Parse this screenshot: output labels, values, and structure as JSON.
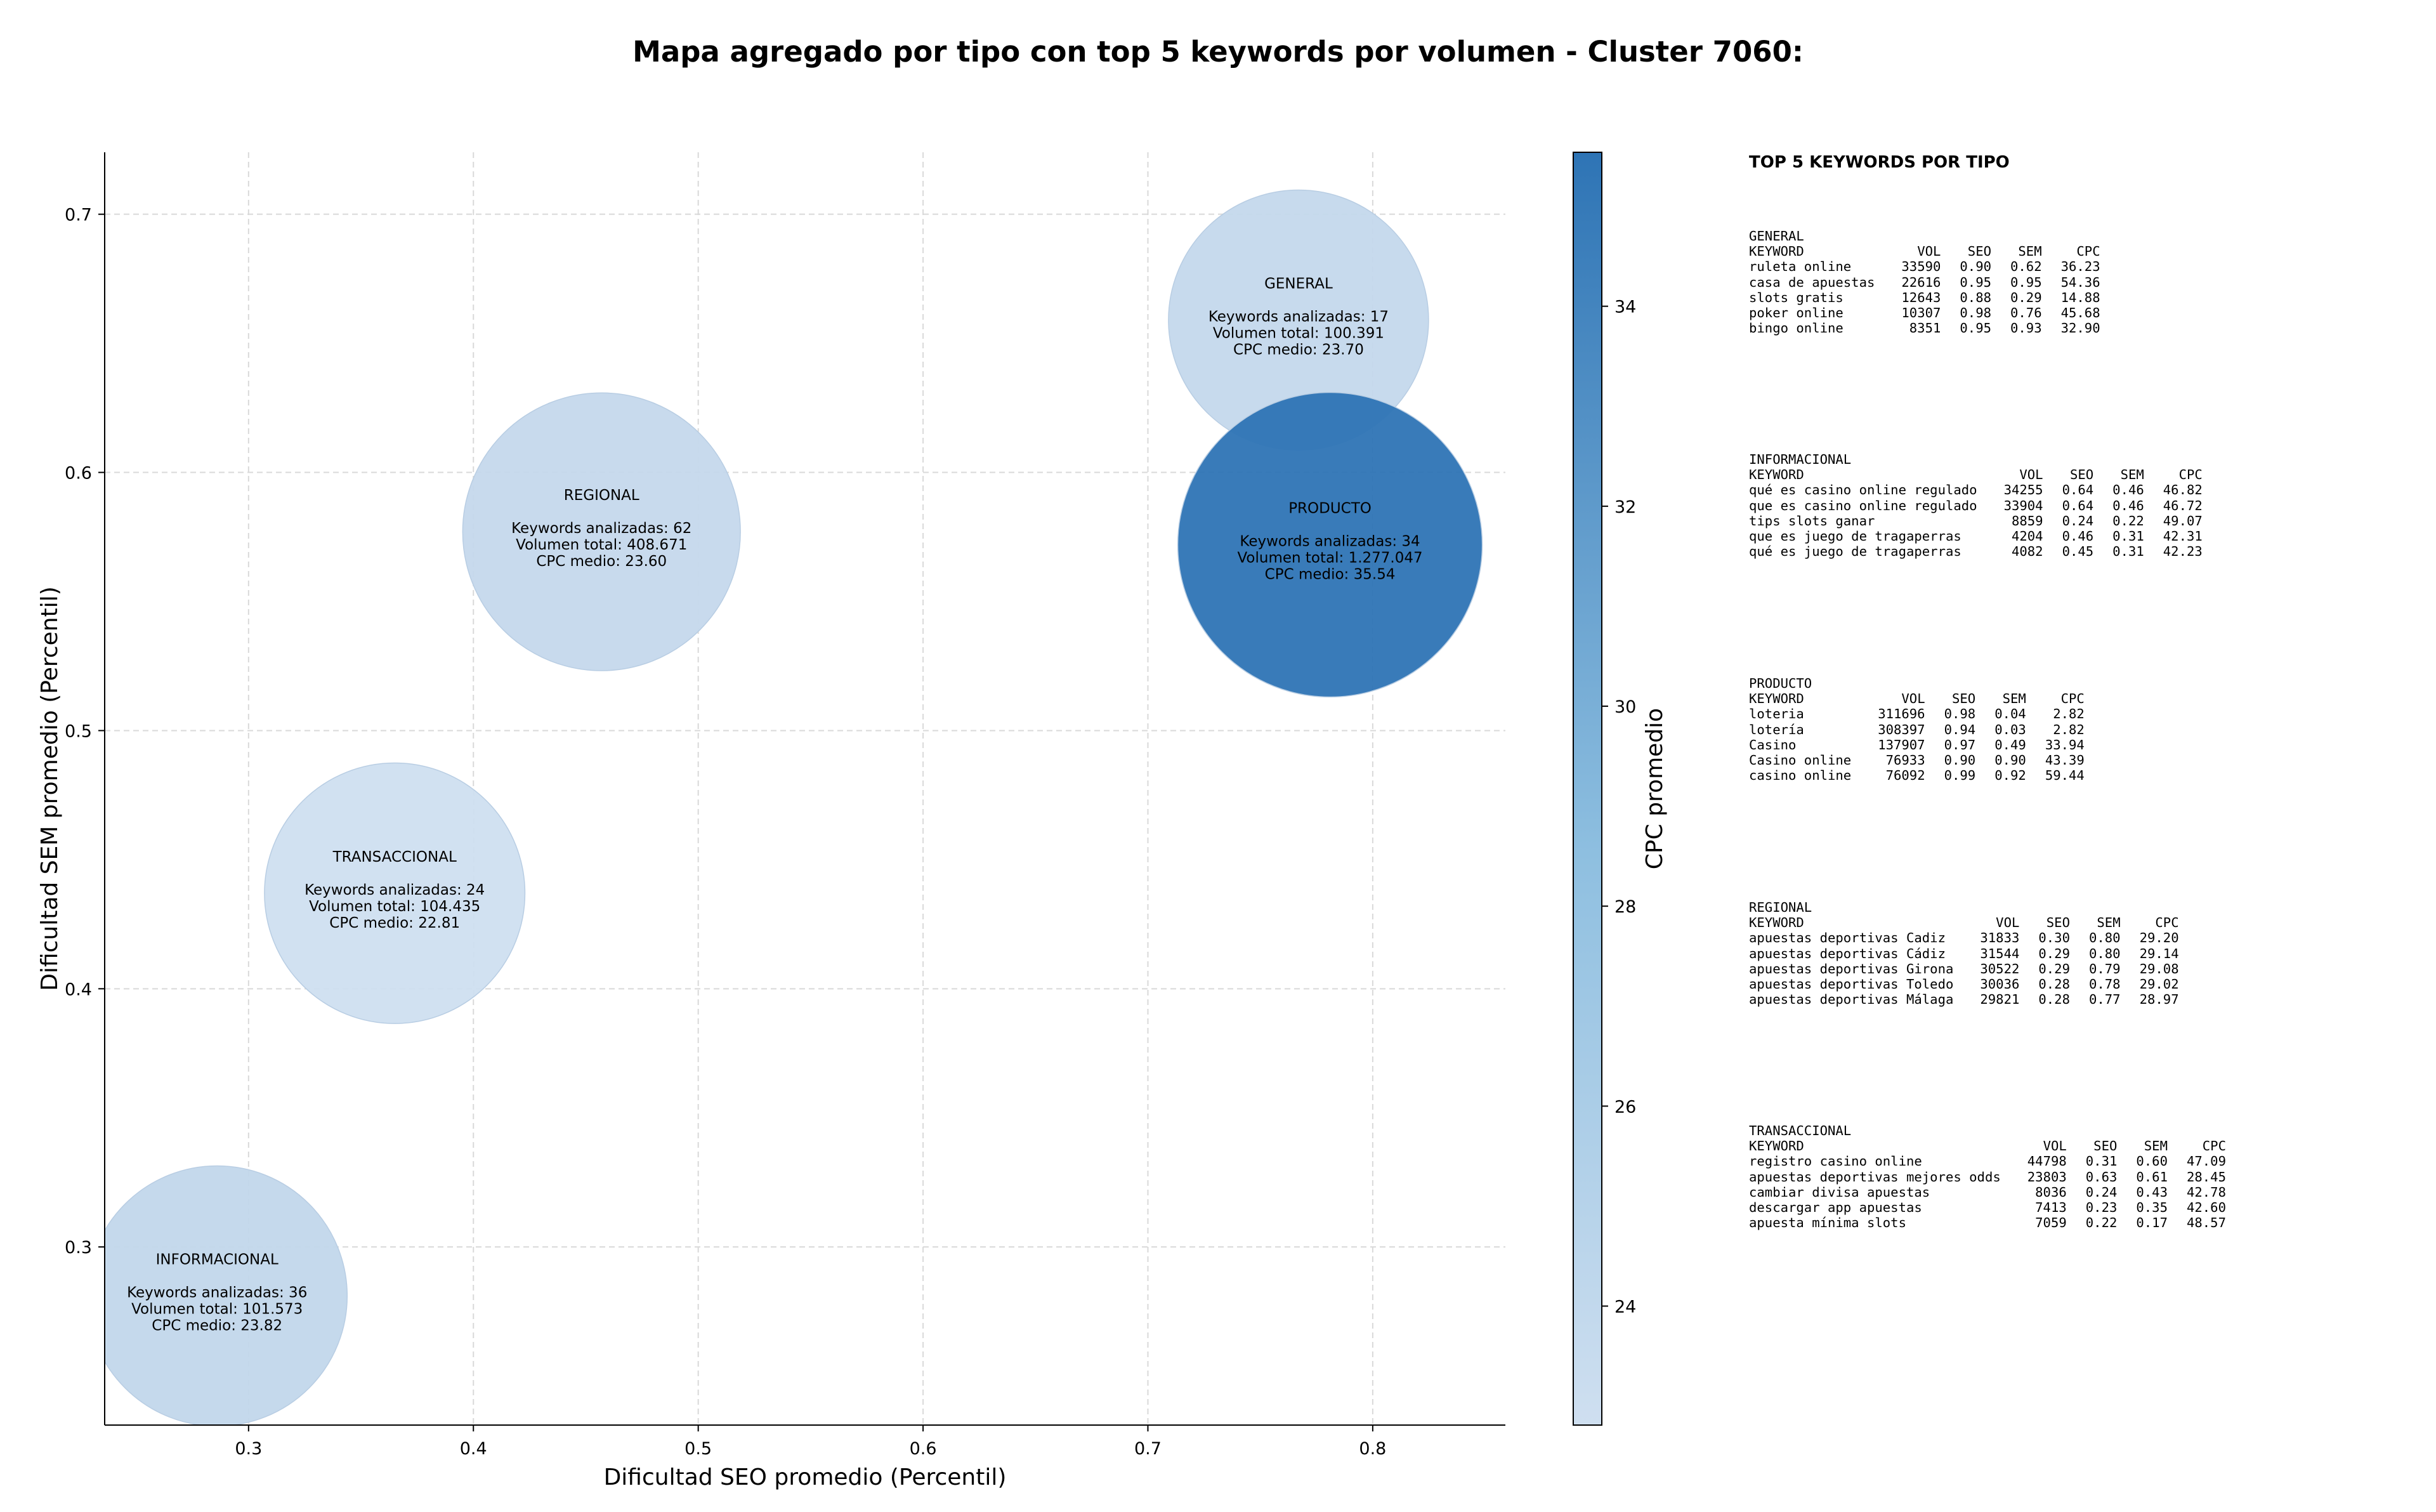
{
  "title": "Mapa agregado por tipo con top 5 keywords por volumen - Cluster 7060:",
  "chart_data": {
    "type": "scatter",
    "xlabel": "Dificultad SEO promedio (Percentil)",
    "ylabel": "Dificultad SEM promedio (Percentil)",
    "xlim": [
      0.236,
      0.859
    ],
    "ylim": [
      0.231,
      0.724
    ],
    "xticks": [
      "0.3",
      "0.4",
      "0.5",
      "0.6",
      "0.7",
      "0.8"
    ],
    "yticks": [
      "0.3",
      "0.4",
      "0.5",
      "0.6",
      "0.7"
    ],
    "grid": true,
    "bubble_size_by": "Volumen total",
    "colorbar": {
      "label": "CPC promedio",
      "range": [
        22.81,
        35.54
      ],
      "ticks": [
        "24",
        "26",
        "28",
        "30",
        "32",
        "34"
      ],
      "colors": [
        "#cfdff0",
        "#2e74b5"
      ]
    },
    "points": [
      {
        "name": "GENERAL",
        "x": 0.767,
        "y": 0.659,
        "line1": "Keywords analizadas: 17",
        "line2": "Volumen total: 100.391",
        "line3": "CPC medio: 23.70",
        "cpc": 23.7
      },
      {
        "name": "REGIONAL",
        "x": 0.457,
        "y": 0.577,
        "line1": "Keywords analizadas: 62",
        "line2": "Volumen total: 408.671",
        "line3": "CPC medio: 23.60",
        "cpc": 23.6
      },
      {
        "name": "TRANSACCIONAL",
        "x": 0.365,
        "y": 0.437,
        "line1": "Keywords analizadas: 24",
        "line2": "Volumen total: 104.435",
        "line3": "CPC medio: 22.81",
        "cpc": 22.81
      },
      {
        "name": "INFORMACIONAL",
        "x": 0.286,
        "y": 0.281,
        "line1": "Keywords analizadas: 36",
        "line2": "Volumen total: 101.573",
        "line3": "CPC medio: 23.82",
        "cpc": 23.82
      },
      {
        "name": "PRODUCTO",
        "x": 0.781,
        "y": 0.572,
        "line1": "Keywords analizadas: 34",
        "line2": "Volumen total: 1.277.047",
        "line3": "CPC medio: 35.54",
        "cpc": 35.54
      }
    ]
  },
  "side_panel": {
    "title": "TOP 5 KEYWORDS POR TIPO",
    "headers": [
      "KEYWORD",
      "VOL",
      "SEO",
      "SEM",
      "CPC"
    ],
    "groups": [
      {
        "name": "GENERAL",
        "rows": [
          [
            "ruleta online",
            "33590",
            "0.90",
            "0.62",
            "36.23"
          ],
          [
            "casa de apuestas",
            "22616",
            "0.95",
            "0.95",
            "54.36"
          ],
          [
            "slots gratis",
            "12643",
            "0.88",
            "0.29",
            "14.88"
          ],
          [
            "poker online",
            "10307",
            "0.98",
            "0.76",
            "45.68"
          ],
          [
            "bingo online",
            "8351",
            "0.95",
            "0.93",
            "32.90"
          ]
        ]
      },
      {
        "name": "INFORMACIONAL",
        "rows": [
          [
            "qué es casino online regulado",
            "34255",
            "0.64",
            "0.46",
            "46.82"
          ],
          [
            "que es casino online regulado",
            "33904",
            "0.64",
            "0.46",
            "46.72"
          ],
          [
            "tips slots ganar",
            "8859",
            "0.24",
            "0.22",
            "49.07"
          ],
          [
            "que es juego de tragaperras",
            "4204",
            "0.46",
            "0.31",
            "42.31"
          ],
          [
            "qué es juego de tragaperras",
            "4082",
            "0.45",
            "0.31",
            "42.23"
          ]
        ]
      },
      {
        "name": "PRODUCTO",
        "rows": [
          [
            "loteria",
            "311696",
            "0.98",
            "0.04",
            "2.82"
          ],
          [
            "lotería",
            "308397",
            "0.94",
            "0.03",
            "2.82"
          ],
          [
            "Casino",
            "137907",
            "0.97",
            "0.49",
            "33.94"
          ],
          [
            "Casino online",
            "76933",
            "0.90",
            "0.90",
            "43.39"
          ],
          [
            "casino online",
            "76092",
            "0.99",
            "0.92",
            "59.44"
          ]
        ]
      },
      {
        "name": "REGIONAL",
        "rows": [
          [
            "apuestas deportivas Cadiz",
            "31833",
            "0.30",
            "0.80",
            "29.20"
          ],
          [
            "apuestas deportivas Cádiz",
            "31544",
            "0.29",
            "0.80",
            "29.14"
          ],
          [
            "apuestas deportivas Girona",
            "30522",
            "0.29",
            "0.79",
            "29.08"
          ],
          [
            "apuestas deportivas Toledo",
            "30036",
            "0.28",
            "0.78",
            "29.02"
          ],
          [
            "apuestas deportivas Málaga",
            "29821",
            "0.28",
            "0.77",
            "28.97"
          ]
        ]
      },
      {
        "name": "TRANSACCIONAL",
        "rows": [
          [
            "registro casino online",
            "44798",
            "0.31",
            "0.60",
            "47.09"
          ],
          [
            "apuestas deportivas mejores odds",
            "23803",
            "0.63",
            "0.61",
            "28.45"
          ],
          [
            "cambiar divisa apuestas",
            "8036",
            "0.24",
            "0.43",
            "42.78"
          ],
          [
            "descargar app apuestas",
            "7413",
            "0.23",
            "0.35",
            "42.60"
          ],
          [
            "apuesta mínima slots",
            "7059",
            "0.22",
            "0.17",
            "48.57"
          ]
        ]
      }
    ]
  }
}
